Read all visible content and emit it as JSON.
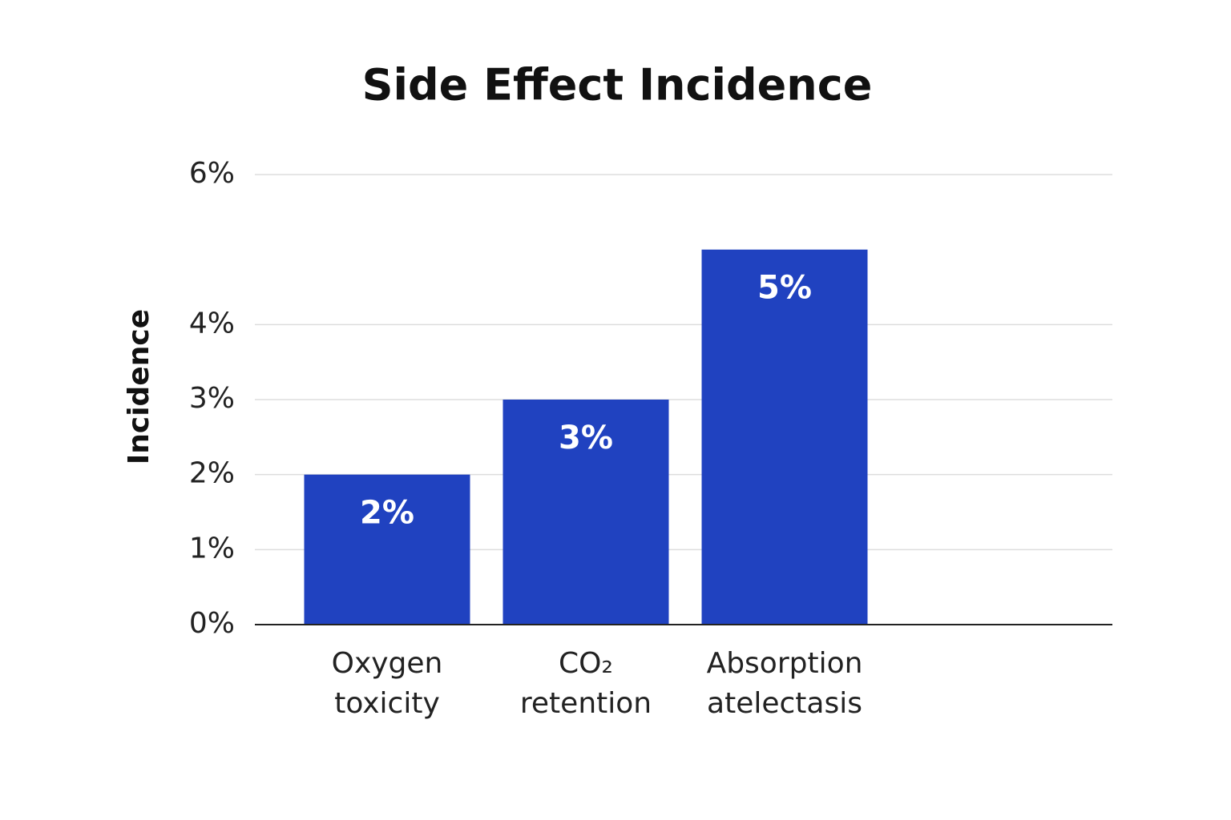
{
  "chart_data": {
    "type": "bar",
    "title": "Side Effect Incidence",
    "y_label": "Incidence",
    "categories": [
      "Oxygen toxicity",
      "CO₂ retention",
      "Absorption atelectasis"
    ],
    "values": [
      2,
      3,
      5
    ],
    "value_labels": [
      "2%",
      "3%",
      "5%"
    ],
    "color": "#2042c0",
    "ylim": [
      0,
      6
    ],
    "yticks": [
      {
        "value": 0,
        "label": "0%"
      },
      {
        "value": 1,
        "label": "1%"
      },
      {
        "value": 2,
        "label": "2%"
      },
      {
        "value": 3,
        "label": "3%"
      },
      {
        "value": 4,
        "label": "4%"
      },
      {
        "value": 6,
        "label": "6%"
      }
    ],
    "grid": true
  }
}
